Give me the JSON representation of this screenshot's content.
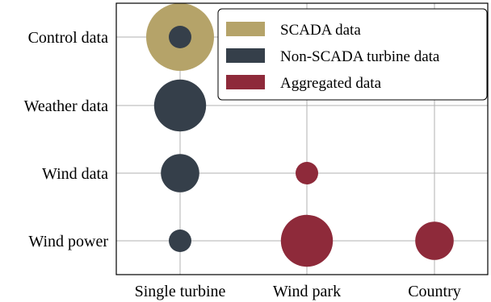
{
  "chart_data": {
    "type": "scatter",
    "x_categories": [
      "Single turbine",
      "Wind park",
      "Country"
    ],
    "y_categories": [
      "Control data",
      "Weather data",
      "Wind data",
      "Wind power"
    ],
    "grid": true,
    "legend_position": "top-right",
    "series": [
      {
        "name": "SCADA data",
        "color": "#b5a369",
        "points": [
          {
            "x": "Single turbine",
            "y": "Control data",
            "size": 3
          }
        ]
      },
      {
        "name": "Non-SCADA turbine data",
        "color": "#353f4a",
        "points": [
          {
            "x": "Single turbine",
            "y": "Control data",
            "size": 1
          },
          {
            "x": "Single turbine",
            "y": "Weather data",
            "size": 2.3
          },
          {
            "x": "Single turbine",
            "y": "Wind data",
            "size": 1.7
          },
          {
            "x": "Single turbine",
            "y": "Wind power",
            "size": 1
          }
        ]
      },
      {
        "name": "Aggregated data",
        "color": "#8e2a3a",
        "points": [
          {
            "x": "Wind park",
            "y": "Wind data",
            "size": 1
          },
          {
            "x": "Wind park",
            "y": "Wind power",
            "size": 2.3
          },
          {
            "x": "Country",
            "y": "Wind power",
            "size": 1.7
          }
        ]
      }
    ]
  }
}
